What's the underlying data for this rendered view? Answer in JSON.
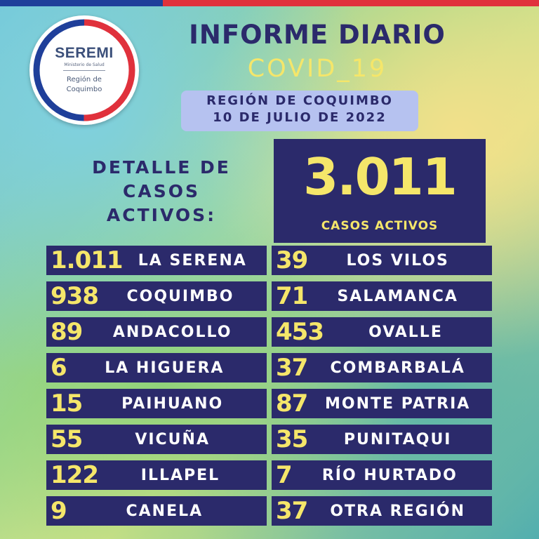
{
  "header": {
    "title": "INFORME DIARIO",
    "subtitle": "COVID_19",
    "region_line1": "REGIÓN DE COQUIMBO",
    "region_line2": "10 DE JULIO DE 2022"
  },
  "logo": {
    "name": "SEREMI",
    "ministry": "Ministerio de Salud",
    "region_line1": "Región de",
    "region_line2": "Coquimbo"
  },
  "detail_heading": [
    "DETALLE DE",
    "CASOS",
    "ACTIVOS:"
  ],
  "total": {
    "value": "3.011",
    "label": "CASOS ACTIVOS"
  },
  "communes_left": [
    {
      "value": "1.011",
      "name": "LA SERENA"
    },
    {
      "value": "938",
      "name": "COQUIMBO"
    },
    {
      "value": "89",
      "name": "ANDACOLLO"
    },
    {
      "value": "6",
      "name": "LA HIGUERA"
    },
    {
      "value": "15",
      "name": "PAIHUANO"
    },
    {
      "value": "55",
      "name": "VICUÑA"
    },
    {
      "value": "122",
      "name": "ILLAPEL"
    },
    {
      "value": "9",
      "name": "CANELA"
    }
  ],
  "communes_right": [
    {
      "value": "39",
      "name": "LOS VILOS"
    },
    {
      "value": "71",
      "name": "SALAMANCA"
    },
    {
      "value": "453",
      "name": "OVALLE"
    },
    {
      "value": "37",
      "name": "COMBARBALÁ"
    },
    {
      "value": "87",
      "name": "MONTE PATRIA"
    },
    {
      "value": "35",
      "name": "PUNITAQUI"
    },
    {
      "value": "7",
      "name": "RÍO HURTADO"
    },
    {
      "value": "37",
      "name": "OTRA REGIÓN"
    }
  ],
  "colors": {
    "navy": "#2b2a6b",
    "yellow": "#f5e66a",
    "flag_blue": "#1f3f9a",
    "flag_red": "#e0313c"
  }
}
